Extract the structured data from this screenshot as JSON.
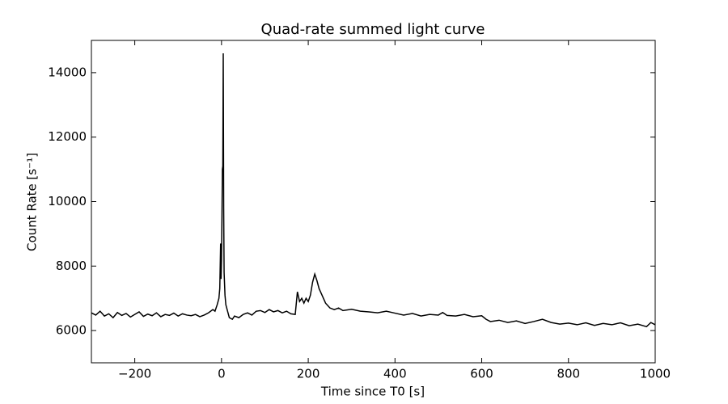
{
  "chart_data": {
    "type": "line",
    "title": "Quad-rate summed light curve",
    "xlabel": "Time since T0 [s]",
    "ylabel": "Count Rate [s⁻¹]",
    "x": [
      -300,
      -290,
      -280,
      -270,
      -260,
      -250,
      -240,
      -230,
      -220,
      -210,
      -200,
      -190,
      -180,
      -170,
      -160,
      -150,
      -140,
      -130,
      -120,
      -110,
      -100,
      -90,
      -80,
      -70,
      -60,
      -50,
      -40,
      -30,
      -20,
      -15,
      -10,
      -6,
      -4,
      -2,
      -1,
      0,
      1,
      2,
      3,
      4,
      5,
      6,
      8,
      10,
      14,
      18,
      25,
      30,
      40,
      50,
      60,
      70,
      80,
      90,
      100,
      110,
      120,
      130,
      140,
      150,
      160,
      170,
      175,
      180,
      185,
      190,
      195,
      200,
      205,
      210,
      215,
      220,
      225,
      230,
      235,
      240,
      250,
      260,
      270,
      280,
      300,
      320,
      340,
      360,
      380,
      400,
      420,
      440,
      460,
      480,
      500,
      510,
      520,
      540,
      560,
      580,
      600,
      610,
      620,
      640,
      660,
      680,
      700,
      720,
      740,
      760,
      780,
      800,
      820,
      840,
      860,
      880,
      900,
      920,
      940,
      960,
      980,
      990,
      1000
    ],
    "series": [
      {
        "color": "#000000",
        "values": [
          6550,
          6480,
          6600,
          6450,
          6520,
          6400,
          6560,
          6470,
          6530,
          6420,
          6500,
          6580,
          6440,
          6510,
          6460,
          6550,
          6430,
          6500,
          6470,
          6540,
          6450,
          6520,
          6480,
          6460,
          6500,
          6430,
          6480,
          6550,
          6650,
          6600,
          6800,
          7000,
          7300,
          8700,
          7600,
          8200,
          9500,
          11000,
          11100,
          14600,
          9800,
          7800,
          7100,
          6800,
          6600,
          6400,
          6350,
          6450,
          6400,
          6500,
          6550,
          6480,
          6600,
          6620,
          6560,
          6650,
          6580,
          6620,
          6550,
          6600,
          6520,
          6500,
          7200,
          6900,
          7000,
          6850,
          7000,
          6900,
          7100,
          7500,
          7750,
          7550,
          7300,
          7150,
          7000,
          6850,
          6700,
          6650,
          6700,
          6620,
          6660,
          6600,
          6580,
          6550,
          6600,
          6540,
          6480,
          6530,
          6450,
          6500,
          6480,
          6560,
          6470,
          6450,
          6500,
          6430,
          6460,
          6350,
          6280,
          6320,
          6250,
          6300,
          6220,
          6280,
          6350,
          6250,
          6200,
          6230,
          6180,
          6240,
          6160,
          6220,
          6180,
          6240,
          6150,
          6200,
          6120,
          6250,
          6180
        ]
      }
    ],
    "xlim": [
      -300,
      1000
    ],
    "xticks": [
      {
        "value": -200,
        "label": "−200"
      },
      0,
      200,
      400,
      600,
      800,
      1000
    ],
    "ylim": [
      5000,
      15000
    ],
    "yticks": [
      6000,
      8000,
      10000,
      12000,
      14000
    ]
  }
}
